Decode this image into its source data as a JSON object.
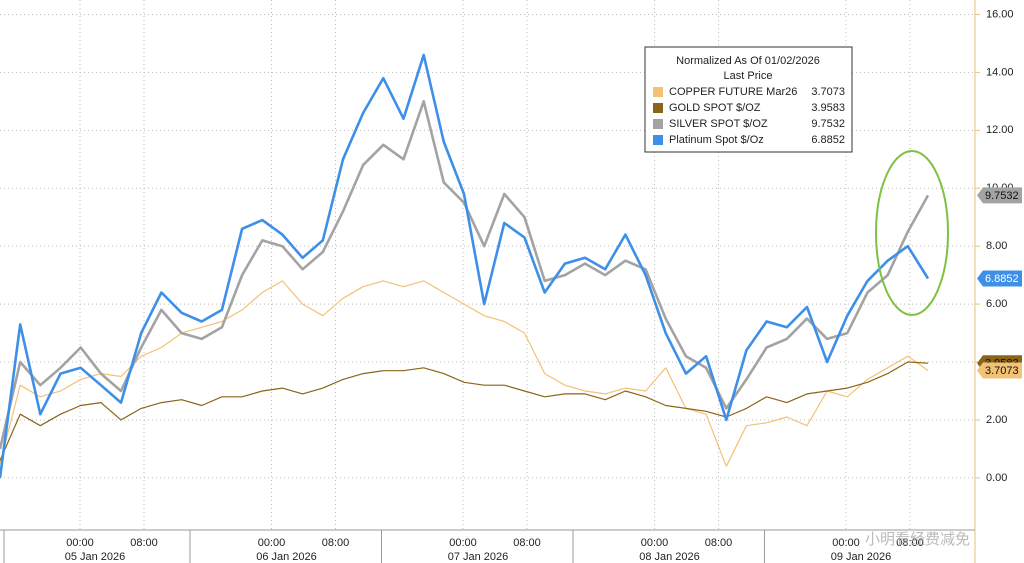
{
  "chart_data": {
    "type": "line",
    "legend": {
      "title": "Normalized As Of 01/02/2026",
      "subtitle": "Last Price"
    },
    "series": [
      {
        "name": "COPPER FUTURE Mar26",
        "color": "#f2c276",
        "width": 1.2,
        "values": [
          0.5,
          3.2,
          2.8,
          3.0,
          3.4,
          3.6,
          3.5,
          4.2,
          4.5,
          5.0,
          5.2,
          5.4,
          5.8,
          6.4,
          6.8,
          6.0,
          5.6,
          6.2,
          6.6,
          6.8,
          6.6,
          6.8,
          6.4,
          6.0,
          5.6,
          5.4,
          5.0,
          3.6,
          3.2,
          3.0,
          2.9,
          3.1,
          3.0,
          3.8,
          2.4,
          2.2,
          0.4,
          1.8,
          1.9,
          2.1,
          1.8,
          3.0,
          2.8,
          3.4,
          3.8,
          4.2,
          3.7073
        ]
      },
      {
        "name": "GOLD SPOT $/OZ",
        "color": "#8a6518",
        "width": 1.2,
        "values": [
          0.6,
          2.2,
          1.8,
          2.2,
          2.5,
          2.6,
          2.0,
          2.4,
          2.6,
          2.7,
          2.5,
          2.8,
          2.8,
          3.0,
          3.1,
          2.9,
          3.1,
          3.4,
          3.6,
          3.7,
          3.7,
          3.8,
          3.6,
          3.3,
          3.2,
          3.2,
          3.0,
          2.8,
          2.9,
          2.9,
          2.7,
          3.0,
          2.8,
          2.5,
          2.4,
          2.3,
          2.1,
          2.4,
          2.8,
          2.6,
          2.9,
          3.0,
          3.1,
          3.3,
          3.6,
          4.0,
          3.9583
        ]
      },
      {
        "name": "SILVER SPOT $/OZ",
        "color": "#a3a3a3",
        "width": 2.6,
        "values": [
          1.0,
          4.0,
          3.2,
          3.8,
          4.5,
          3.6,
          3.0,
          4.5,
          5.8,
          5.0,
          4.8,
          5.2,
          7.0,
          8.2,
          8.0,
          7.2,
          7.8,
          9.2,
          10.8,
          11.5,
          11.0,
          13.0,
          10.2,
          9.5,
          8.0,
          9.8,
          9.0,
          6.8,
          7.0,
          7.4,
          7.0,
          7.5,
          7.2,
          5.5,
          4.2,
          3.8,
          2.4,
          3.4,
          4.5,
          4.8,
          5.5,
          4.8,
          5.0,
          6.4,
          7.0,
          8.5,
          9.7532
        ]
      },
      {
        "name": "Platinum Spot $/Oz",
        "color": "#3d8fe8",
        "width": 2.6,
        "values": [
          0,
          5.3,
          2.2,
          3.6,
          3.8,
          3.2,
          2.6,
          5.0,
          6.4,
          5.7,
          5.4,
          5.8,
          8.6,
          8.9,
          8.4,
          7.6,
          8.2,
          11.0,
          12.6,
          13.8,
          12.4,
          14.6,
          11.6,
          9.8,
          6.0,
          8.8,
          8.3,
          6.4,
          7.4,
          7.6,
          7.2,
          8.4,
          7.0,
          5.0,
          3.6,
          4.2,
          2.0,
          4.4,
          5.4,
          5.2,
          5.9,
          4.0,
          5.6,
          6.8,
          7.5,
          8.0,
          6.8852
        ]
      }
    ],
    "ylim": [
      -1.8,
      16.5
    ],
    "yticks": [
      {
        "value": 0,
        "label": "0.00"
      },
      {
        "value": 2,
        "label": "2.00"
      },
      {
        "value": 4,
        "label": "4.00"
      },
      {
        "value": 6,
        "label": "6.00"
      },
      {
        "value": 8,
        "label": "8.00"
      },
      {
        "value": 10,
        "label": "10.00"
      },
      {
        "value": 12,
        "label": "12.00"
      },
      {
        "value": 14,
        "label": "14.00"
      },
      {
        "value": 16,
        "label": "16.00"
      }
    ],
    "grid": true,
    "time_labels": [
      "00:00",
      "08:00",
      "00:00",
      "08:00",
      "00:00",
      "08:00",
      "00:00",
      "08:00",
      "00:00",
      "08:00"
    ],
    "date_labels": [
      "05 Jan 2026",
      "06 Jan 2026",
      "07 Jan 2026",
      "08 Jan 2026",
      "09 Jan 2026"
    ],
    "watermark": "小明看经费减免"
  }
}
